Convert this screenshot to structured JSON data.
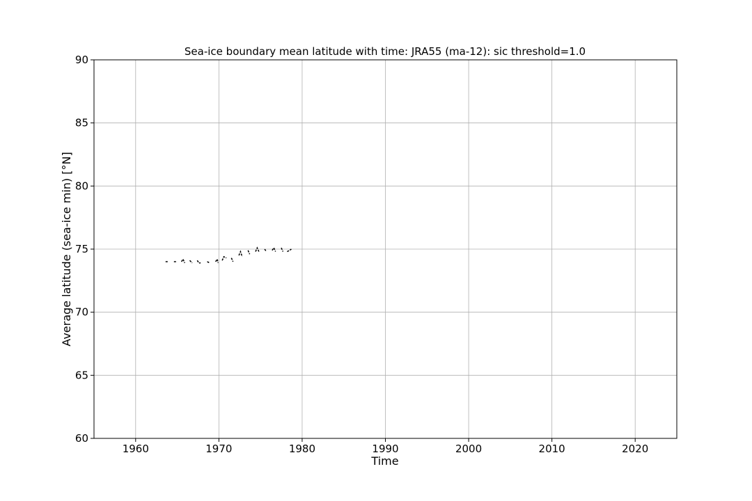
{
  "chart_data": {
    "type": "line",
    "title": "Sea-ice boundary mean latitude with time: JRA55 (ma-12): sic threshold=1.0",
    "xlabel": "Time",
    "ylabel": "Average latitude (sea-ice min) [°N]",
    "xlim": [
      1955,
      2025
    ],
    "ylim": [
      60,
      90
    ],
    "x_ticks": [
      1960,
      1970,
      1980,
      1990,
      2000,
      2010,
      2020
    ],
    "y_ticks": [
      60,
      65,
      70,
      75,
      80,
      85,
      90
    ],
    "grid": true,
    "line_style": "dashed",
    "series": [
      {
        "color": "#000000",
        "segments": [
          {
            "x": [
              1963.6,
              1963.9
            ],
            "y": [
              74.0,
              74.0
            ]
          },
          {
            "x": [
              1964.6,
              1964.9
            ],
            "y": [
              74.0,
              74.0
            ]
          },
          {
            "x": [
              1965.5,
              1965.7,
              1965.9
            ],
            "y": [
              74.0,
              74.2,
              73.9
            ]
          },
          {
            "x": [
              1966.5,
              1966.8
            ],
            "y": [
              74.1,
              73.9
            ]
          },
          {
            "x": [
              1967.4,
              1967.6,
              1967.8
            ],
            "y": [
              74.1,
              73.9,
              73.9
            ]
          },
          {
            "x": [
              1968.6,
              1968.9
            ],
            "y": [
              74.0,
              73.9
            ]
          },
          {
            "x": [
              1969.6,
              1969.8,
              1969.9
            ],
            "y": [
              74.0,
              74.2,
              73.9
            ]
          },
          {
            "x": [
              1970.4,
              1970.6,
              1970.9
            ],
            "y": [
              74.1,
              74.4,
              74.3
            ]
          },
          {
            "x": [
              1971.5,
              1971.7
            ],
            "y": [
              74.3,
              74.0
            ]
          },
          {
            "x": [
              1972.4,
              1972.6,
              1972.8
            ],
            "y": [
              74.5,
              74.8,
              74.4
            ]
          },
          {
            "x": [
              1973.5,
              1973.7
            ],
            "y": [
              74.9,
              74.6
            ]
          },
          {
            "x": [
              1974.4,
              1974.6,
              1974.8
            ],
            "y": [
              74.8,
              75.1,
              74.8
            ]
          },
          {
            "x": [
              1975.5,
              1975.7
            ],
            "y": [
              75.0,
              74.8
            ]
          },
          {
            "x": [
              1976.4,
              1976.6,
              1976.8
            ],
            "y": [
              74.9,
              75.1,
              74.8
            ]
          },
          {
            "x": [
              1977.5,
              1977.7
            ],
            "y": [
              75.1,
              74.8
            ]
          },
          {
            "x": [
              1978.2,
              1978.5,
              1978.7
            ],
            "y": [
              74.8,
              74.9,
              75.0
            ]
          }
        ]
      }
    ]
  }
}
